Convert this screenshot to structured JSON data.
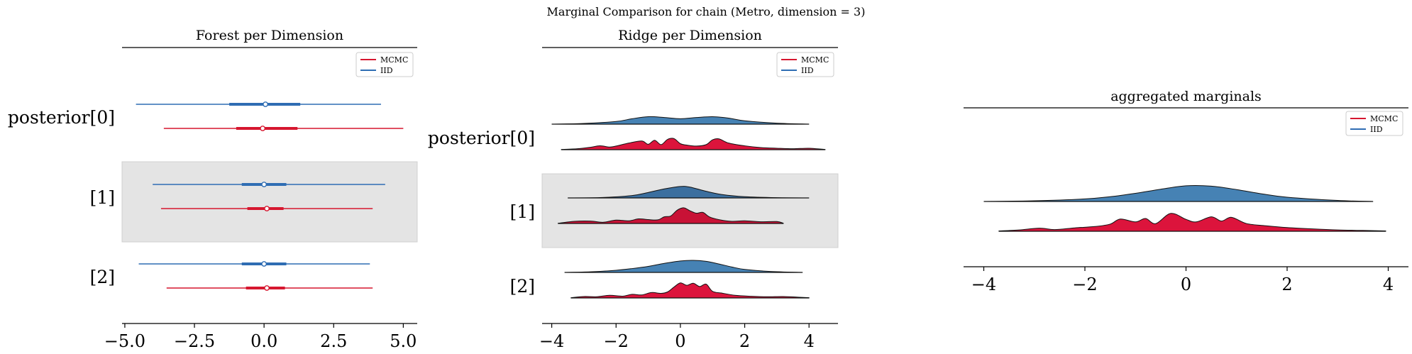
{
  "figure": {
    "suptitle": "Marginal Comparison for chain (Metro, dimension = 3)"
  },
  "colors": {
    "mcmc": "#d6172f",
    "iid": "#2f6db3",
    "ridge_mcmc": "#dc143c",
    "ridge_iid": "#4682b4",
    "band": "#e4e4e4"
  },
  "chart_data": [
    {
      "type": "forest",
      "title": "Forest per Dimension",
      "xlim": [
        -5.1,
        5.5
      ],
      "xticks": [
        -5.0,
        -2.5,
        0.0,
        2.5,
        5.0
      ],
      "xtick_labels": [
        "−5.0",
        "−2.5",
        "0.0",
        "2.5",
        "5.0"
      ],
      "ylabels": [
        "posterior[0]",
        "[1]",
        "[2]"
      ],
      "legend": {
        "position": "top-right",
        "entries": [
          "MCMC",
          "IID"
        ]
      },
      "shaded_rows": [
        1
      ],
      "rows": [
        {
          "IID": {
            "min": -4.6,
            "q25": -1.25,
            "mean": 0.05,
            "q75": 1.3,
            "max": 4.2
          },
          "MCMC": {
            "min": -3.6,
            "q25": -1.0,
            "mean": -0.05,
            "q75": 1.2,
            "max": 5.0
          }
        },
        {
          "IID": {
            "min": -4.0,
            "q25": -0.8,
            "mean": 0.0,
            "q75": 0.8,
            "max": 4.35
          },
          "MCMC": {
            "min": -3.7,
            "q25": -0.6,
            "mean": 0.1,
            "q75": 0.7,
            "max": 3.9
          }
        },
        {
          "IID": {
            "min": -4.5,
            "q25": -0.8,
            "mean": 0.0,
            "q75": 0.8,
            "max": 3.8
          },
          "MCMC": {
            "min": -3.5,
            "q25": -0.65,
            "mean": 0.1,
            "q75": 0.75,
            "max": 3.9
          }
        }
      ]
    },
    {
      "type": "ridge",
      "title": "Ridge per Dimension",
      "xlim": [
        -4.3,
        4.9
      ],
      "xticks": [
        -4,
        -2,
        0,
        2,
        4
      ],
      "xtick_labels": [
        "−4",
        "−2",
        "0",
        "2",
        "4"
      ],
      "ylabels": [
        "posterior[0]",
        "[1]",
        "[2]"
      ],
      "legend": {
        "position": "top-right",
        "entries": [
          "MCMC",
          "IID"
        ]
      },
      "shaded_rows": [
        1
      ],
      "rows": [
        {
          "IID": {
            "x": [
              -4.0,
              -3.0,
              -2.0,
              -1.5,
              -1.0,
              -0.5,
              0.0,
              0.5,
              1.0,
              1.5,
              2.0,
              3.0,
              4.0
            ],
            "density": [
              0.0,
              0.06,
              0.22,
              0.45,
              0.62,
              0.55,
              0.45,
              0.55,
              0.62,
              0.5,
              0.28,
              0.08,
              0.0
            ]
          },
          "MCMC": {
            "x": [
              -3.7,
              -3.2,
              -2.8,
              -2.5,
              -2.2,
              -2.0,
              -1.6,
              -1.2,
              -1.0,
              -0.8,
              -0.6,
              -0.4,
              -0.2,
              0.0,
              0.2,
              0.5,
              0.8,
              1.0,
              1.2,
              1.5,
              2.0,
              2.5,
              3.0,
              3.5,
              4.0,
              4.5
            ],
            "density": [
              0.02,
              0.08,
              0.2,
              0.32,
              0.22,
              0.3,
              0.55,
              0.72,
              0.45,
              0.78,
              0.42,
              0.85,
              0.92,
              0.5,
              0.38,
              0.3,
              0.42,
              0.82,
              0.9,
              0.55,
              0.32,
              0.18,
              0.12,
              0.08,
              0.12,
              0.02
            ]
          }
        },
        {
          "IID": {
            "x": [
              -3.5,
              -2.5,
              -1.5,
              -1.0,
              -0.5,
              0.0,
              0.3,
              0.8,
              1.3,
              2.0,
              3.0,
              4.0
            ],
            "density": [
              0.0,
              0.03,
              0.2,
              0.45,
              0.75,
              0.95,
              0.9,
              0.55,
              0.28,
              0.1,
              0.02,
              0.0
            ]
          },
          "MCMC": {
            "x": [
              -3.8,
              -3.3,
              -2.8,
              -2.4,
              -2.0,
              -1.6,
              -1.3,
              -1.0,
              -0.7,
              -0.5,
              -0.3,
              -0.1,
              0.1,
              0.3,
              0.5,
              0.7,
              0.9,
              1.2,
              1.6,
              2.0,
              2.5,
              3.0,
              3.2
            ],
            "density": [
              0.02,
              0.18,
              0.2,
              0.1,
              0.28,
              0.22,
              0.38,
              0.32,
              0.3,
              0.55,
              0.62,
              1.1,
              1.3,
              1.05,
              0.85,
              0.92,
              0.55,
              0.32,
              0.18,
              0.22,
              0.14,
              0.16,
              0.02
            ]
          }
        },
        {
          "IID": {
            "x": [
              -3.6,
              -2.8,
              -2.0,
              -1.5,
              -1.0,
              -0.5,
              0.0,
              0.4,
              0.8,
              1.2,
              1.6,
              2.0,
              2.8,
              3.8
            ],
            "density": [
              0.0,
              0.05,
              0.18,
              0.32,
              0.5,
              0.75,
              0.95,
              1.0,
              0.92,
              0.7,
              0.45,
              0.25,
              0.08,
              0.0
            ]
          },
          "MCMC": {
            "x": [
              -3.4,
              -3.0,
              -2.6,
              -2.2,
              -1.8,
              -1.5,
              -1.2,
              -0.9,
              -0.6,
              -0.4,
              -0.2,
              0.0,
              0.2,
              0.4,
              0.6,
              0.8,
              1.0,
              1.3,
              1.7,
              2.2,
              2.7,
              3.2,
              3.7,
              4.0
            ],
            "density": [
              0.02,
              0.12,
              0.1,
              0.22,
              0.15,
              0.3,
              0.25,
              0.45,
              0.38,
              0.5,
              0.9,
              1.25,
              1.05,
              1.22,
              0.95,
              1.15,
              0.55,
              0.4,
              0.22,
              0.14,
              0.1,
              0.12,
              0.06,
              0.02
            ]
          }
        }
      ]
    },
    {
      "type": "ridge",
      "title": "aggregated marginals",
      "xlim": [
        -4.4,
        4.4
      ],
      "xticks": [
        -4,
        -2,
        0,
        2,
        4
      ],
      "xtick_labels": [
        "−4",
        "−2",
        "0",
        "2",
        "4"
      ],
      "ylabels": [],
      "legend": {
        "position": "top-right",
        "entries": [
          "MCMC",
          "IID"
        ]
      },
      "shaded_rows": [],
      "rows": [
        {
          "IID": {
            "x": [
              -4.0,
              -3.0,
              -2.0,
              -1.5,
              -1.0,
              -0.5,
              0.0,
              0.5,
              1.0,
              1.5,
              2.0,
              3.0,
              3.7
            ],
            "density": [
              0.0,
              0.04,
              0.15,
              0.28,
              0.48,
              0.72,
              0.92,
              0.9,
              0.7,
              0.45,
              0.25,
              0.06,
              0.0
            ]
          },
          "MCMC": {
            "x": [
              -3.7,
              -3.3,
              -2.9,
              -2.6,
              -2.2,
              -1.8,
              -1.5,
              -1.3,
              -1.0,
              -0.8,
              -0.6,
              -0.3,
              0.0,
              0.2,
              0.5,
              0.7,
              0.9,
              1.2,
              1.6,
              2.0,
              2.5,
              3.0,
              3.5,
              3.95
            ],
            "density": [
              0.02,
              0.08,
              0.18,
              0.1,
              0.2,
              0.28,
              0.42,
              0.72,
              0.55,
              0.75,
              0.45,
              1.05,
              0.7,
              0.55,
              0.85,
              0.6,
              0.82,
              0.45,
              0.32,
              0.22,
              0.14,
              0.08,
              0.05,
              0.02
            ]
          }
        }
      ]
    }
  ]
}
